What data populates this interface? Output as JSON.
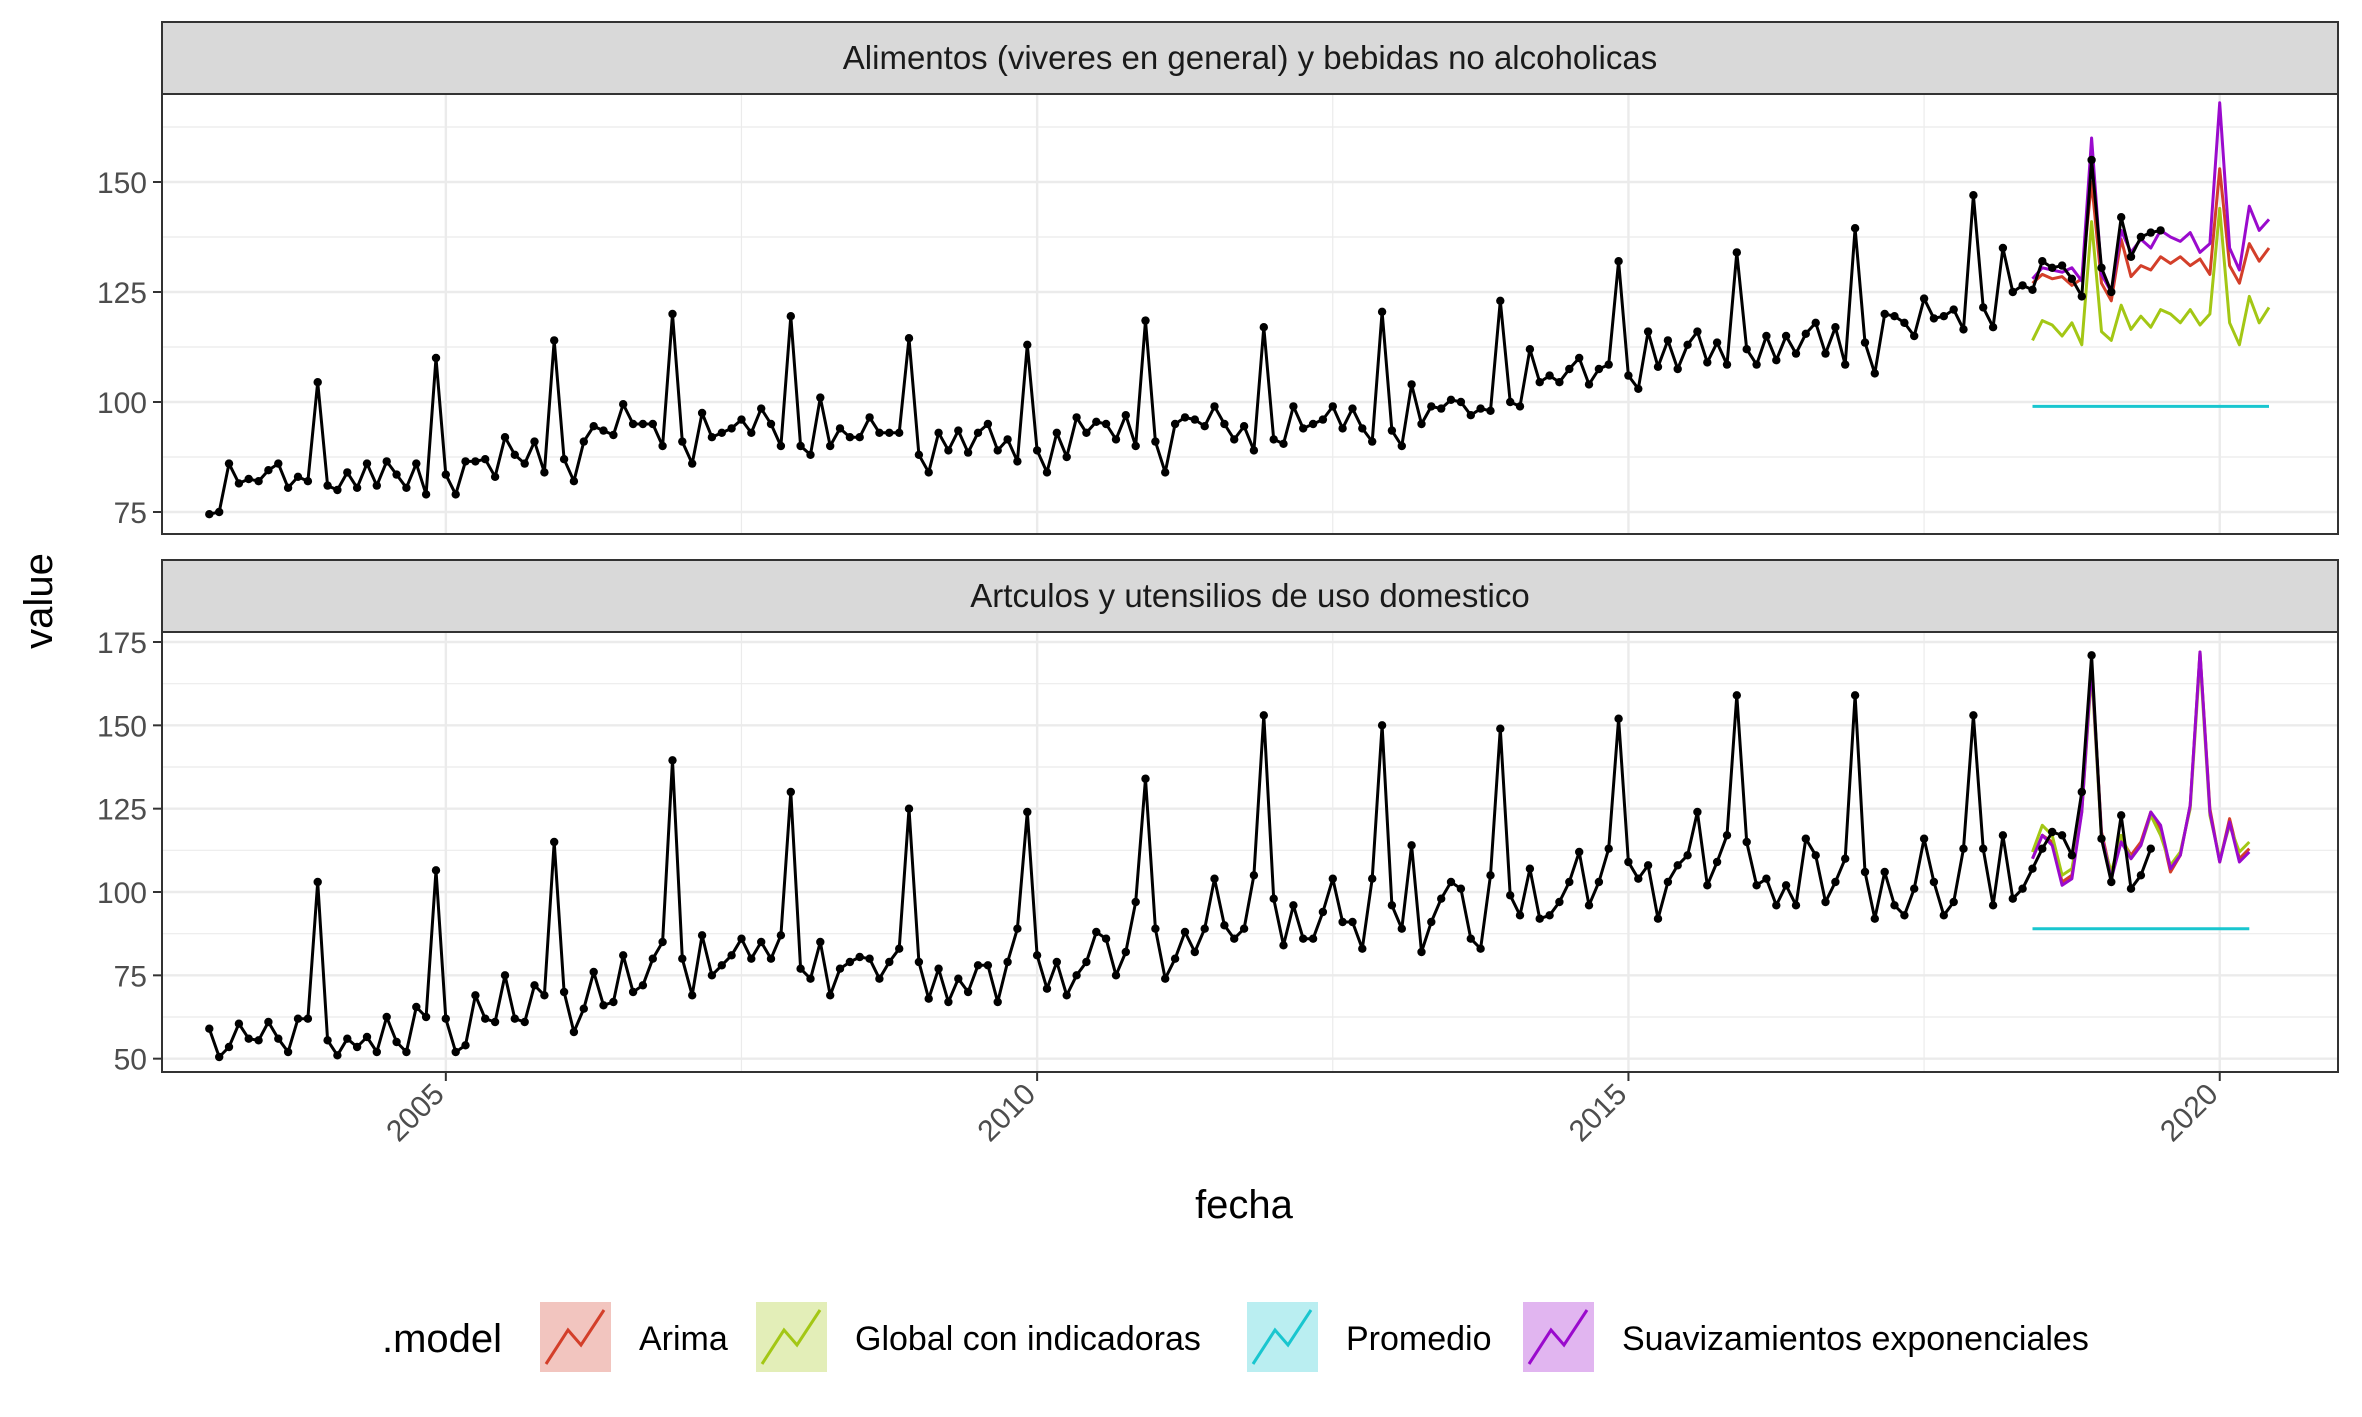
{
  "chart_data": {
    "type": "line",
    "layout": "faceted-two-panels",
    "xlabel": "fecha",
    "ylabel": "value",
    "x_ticks": [
      "2005",
      "2010",
      "2015",
      "2020"
    ],
    "x_range_years": [
      2002.6,
      2021.0
    ],
    "legend": {
      "title": ".model",
      "placement": "bottom",
      "entries": [
        {
          "name": "Arima",
          "color": "#D33F2A"
        },
        {
          "name": "Global con indicadoras",
          "color": "#A3C715"
        },
        {
          "name": "Promedio",
          "color": "#19C6CF"
        },
        {
          "name": "Suavizamientos exponenciales",
          "color": "#9A0ACD"
        }
      ]
    },
    "panels": [
      {
        "title": "Alimentos (viveres en general) y bebidas no alcoholicas",
        "y_range": [
          70,
          170
        ],
        "y_ticks": [
          75,
          100,
          125,
          150
        ],
        "observed": {
          "start_year": 2003,
          "start_month": 1,
          "color": "#000000",
          "values": [
            74.5,
            75,
            86,
            81.5,
            82.5,
            82,
            84.5,
            86,
            80.5,
            83,
            82,
            104.5,
            81,
            80,
            84,
            80.5,
            86,
            81,
            86.5,
            83.5,
            80.5,
            86,
            79,
            110,
            83.5,
            79,
            86.5,
            86.5,
            87,
            83,
            92,
            88,
            86,
            91,
            84,
            114,
            87,
            82,
            91,
            94.5,
            93.5,
            92.5,
            99.5,
            95,
            95,
            95,
            90,
            120,
            91,
            86,
            97.5,
            92,
            93,
            94,
            96,
            93,
            98.5,
            95,
            90,
            119.5,
            90,
            88,
            101,
            90,
            94,
            92,
            92,
            96.5,
            93,
            93,
            93,
            114.5,
            88,
            84,
            93,
            89,
            93.5,
            88.5,
            93,
            95,
            89,
            91.5,
            86.5,
            113,
            89,
            84,
            93,
            87.5,
            96.5,
            93,
            95.5,
            95,
            91.5,
            97,
            90,
            118.5,
            91,
            84,
            95,
            96.5,
            96,
            94.5,
            99,
            95,
            91.5,
            94.5,
            89,
            117,
            91.5,
            90.5,
            99,
            94,
            95,
            96,
            99,
            94,
            98.5,
            94,
            91,
            120.5,
            93.5,
            90,
            104,
            95,
            99,
            98.5,
            100.5,
            100,
            97,
            98.5,
            98,
            123,
            100,
            99,
            112,
            104.5,
            106,
            104.5,
            107.5,
            110,
            104,
            107.5,
            108.5,
            132,
            106,
            103,
            116,
            108,
            114,
            107.5,
            113,
            116,
            109,
            113.5,
            108.5,
            134,
            112,
            108.5,
            115,
            109.5,
            115,
            111,
            115.5,
            118,
            111,
            117,
            108.5,
            139.5,
            113.5,
            106.5,
            120,
            119.5,
            118,
            115,
            123.5,
            119,
            119.5,
            121,
            116.5,
            147,
            121.5,
            117,
            135,
            125,
            126.5,
            125.5,
            132,
            130.5,
            131,
            128,
            124,
            155,
            130.5,
            125,
            142,
            133,
            137.5,
            138.5,
            139
          ]
        },
        "forecast_start": [
          2018,
          6
        ],
        "forecasts": [
          {
            "name": "Arima",
            "color": "#D33F2A",
            "values": [
              127,
              129,
              128,
              128.5,
              126.5,
              128,
              150,
              127,
              123,
              137,
              128.5,
              131,
              130,
              133,
              131.5,
              133,
              131,
              132.5,
              129,
              153,
              131,
              127,
              136,
              132,
              135
            ]
          },
          {
            "name": "Global con indicadoras",
            "color": "#A3C715",
            "values": [
              114,
              118.5,
              117.5,
              115,
              118,
              113,
              141,
              116,
              114,
              122,
              116.5,
              119.5,
              117,
              121,
              120,
              118,
              121,
              117.5,
              120,
              144,
              118,
              113,
              124,
              118,
              121.5
            ]
          },
          {
            "name": "Promedio",
            "color": "#19C6CF",
            "values": [
              99,
              99,
              99,
              99,
              99,
              99,
              99,
              99,
              99,
              99,
              99,
              99,
              99,
              99,
              99,
              99,
              99,
              99,
              99,
              99,
              99,
              99,
              99,
              99,
              99
            ]
          },
          {
            "name": "Suavizamientos exponenciales",
            "color": "#9A0ACD",
            "values": [
              128,
              130.5,
              130,
              129.5,
              130.5,
              127.5,
              160,
              129,
              125,
              139,
              134,
              137,
              135,
              139,
              137.5,
              136.5,
              138.5,
              134,
              136,
              168,
              135,
              130,
              144.5,
              139,
              141.5
            ]
          }
        ]
      },
      {
        "title": "Artculos y utensilios de uso domestico",
        "y_range": [
          46,
          178
        ],
        "y_ticks": [
          50,
          75,
          100,
          125,
          150,
          175
        ],
        "observed": {
          "start_year": 2003,
          "start_month": 1,
          "color": "#000000",
          "values": [
            59,
            50.5,
            53.5,
            60.5,
            56,
            55.5,
            61,
            56,
            52,
            62,
            62,
            103,
            55.5,
            51,
            56,
            53.5,
            56.5,
            52,
            62.5,
            55,
            52,
            65.5,
            62.5,
            106.5,
            62,
            52,
            54,
            69,
            62,
            61,
            75,
            62,
            61,
            72,
            69,
            115,
            70,
            58,
            65,
            76,
            66,
            67,
            81,
            70,
            72,
            80,
            85,
            139.5,
            80,
            69,
            87,
            75,
            78,
            81,
            86,
            80,
            85,
            80,
            87,
            130,
            77,
            74,
            85,
            69,
            77,
            79,
            80.5,
            80,
            74,
            79,
            83,
            125,
            79,
            68,
            77,
            67,
            74,
            70,
            78,
            78,
            67,
            79,
            89,
            124,
            81,
            71,
            79,
            69,
            75,
            79,
            88,
            86,
            75,
            82,
            97,
            134,
            89,
            74,
            80,
            88,
            82,
            89,
            104,
            90,
            86,
            89,
            105,
            153,
            98,
            84,
            96,
            86,
            86,
            94,
            104,
            91,
            91,
            83,
            104,
            150,
            96,
            89,
            114,
            82,
            91,
            98,
            103,
            101,
            86,
            83,
            105,
            149,
            99,
            93,
            107,
            92,
            93,
            97,
            103,
            112,
            96,
            103,
            113,
            152,
            109,
            104,
            108,
            92,
            103,
            108,
            111,
            124,
            102,
            109,
            117,
            159,
            115,
            102,
            104,
            96,
            102,
            96,
            116,
            111,
            97,
            103,
            110,
            159,
            106,
            92,
            106,
            96,
            93,
            101,
            116,
            103,
            93,
            97,
            113,
            153,
            113,
            96,
            117,
            98,
            101,
            107,
            113,
            118,
            117,
            111,
            130,
            171,
            116,
            103,
            123,
            101,
            105,
            113
          ]
        },
        "forecast_start": [
          2018,
          6
        ],
        "forecasts": [
          {
            "name": "Arima",
            "color": "#D33F2A",
            "values": [
              110,
              117,
              115,
              103,
              105,
              125,
              168,
              118,
              105,
              116,
              111,
              115,
              124,
              119,
              106,
              111,
              126,
              172,
              125,
              109,
              122,
              110,
              113
            ]
          },
          {
            "name": "Global con indicadoras",
            "color": "#A3C715",
            "values": [
              112,
              120,
              117,
              105,
              107,
              124,
              166,
              116,
              106,
              117,
              110,
              114,
              123,
              117,
              108,
              112,
              125,
              170,
              123,
              110,
              120,
              112,
              115
            ]
          },
          {
            "name": "Promedio",
            "color": "#19C6CF",
            "values": [
              89,
              89,
              89,
              89,
              89,
              89,
              89,
              89,
              89,
              89,
              89,
              89,
              89,
              89,
              89,
              89,
              89,
              89,
              89,
              89,
              89,
              89,
              89
            ]
          },
          {
            "name": "Suavizamientos exponenciales",
            "color": "#9A0ACD",
            "values": [
              110,
              117,
              114,
              102,
              104,
              124,
              168,
              117,
              104,
              115,
              110,
              114,
              124,
              120,
              107,
              111,
              126,
              172,
              124,
              109,
              121,
              109,
              112
            ]
          }
        ]
      }
    ]
  }
}
